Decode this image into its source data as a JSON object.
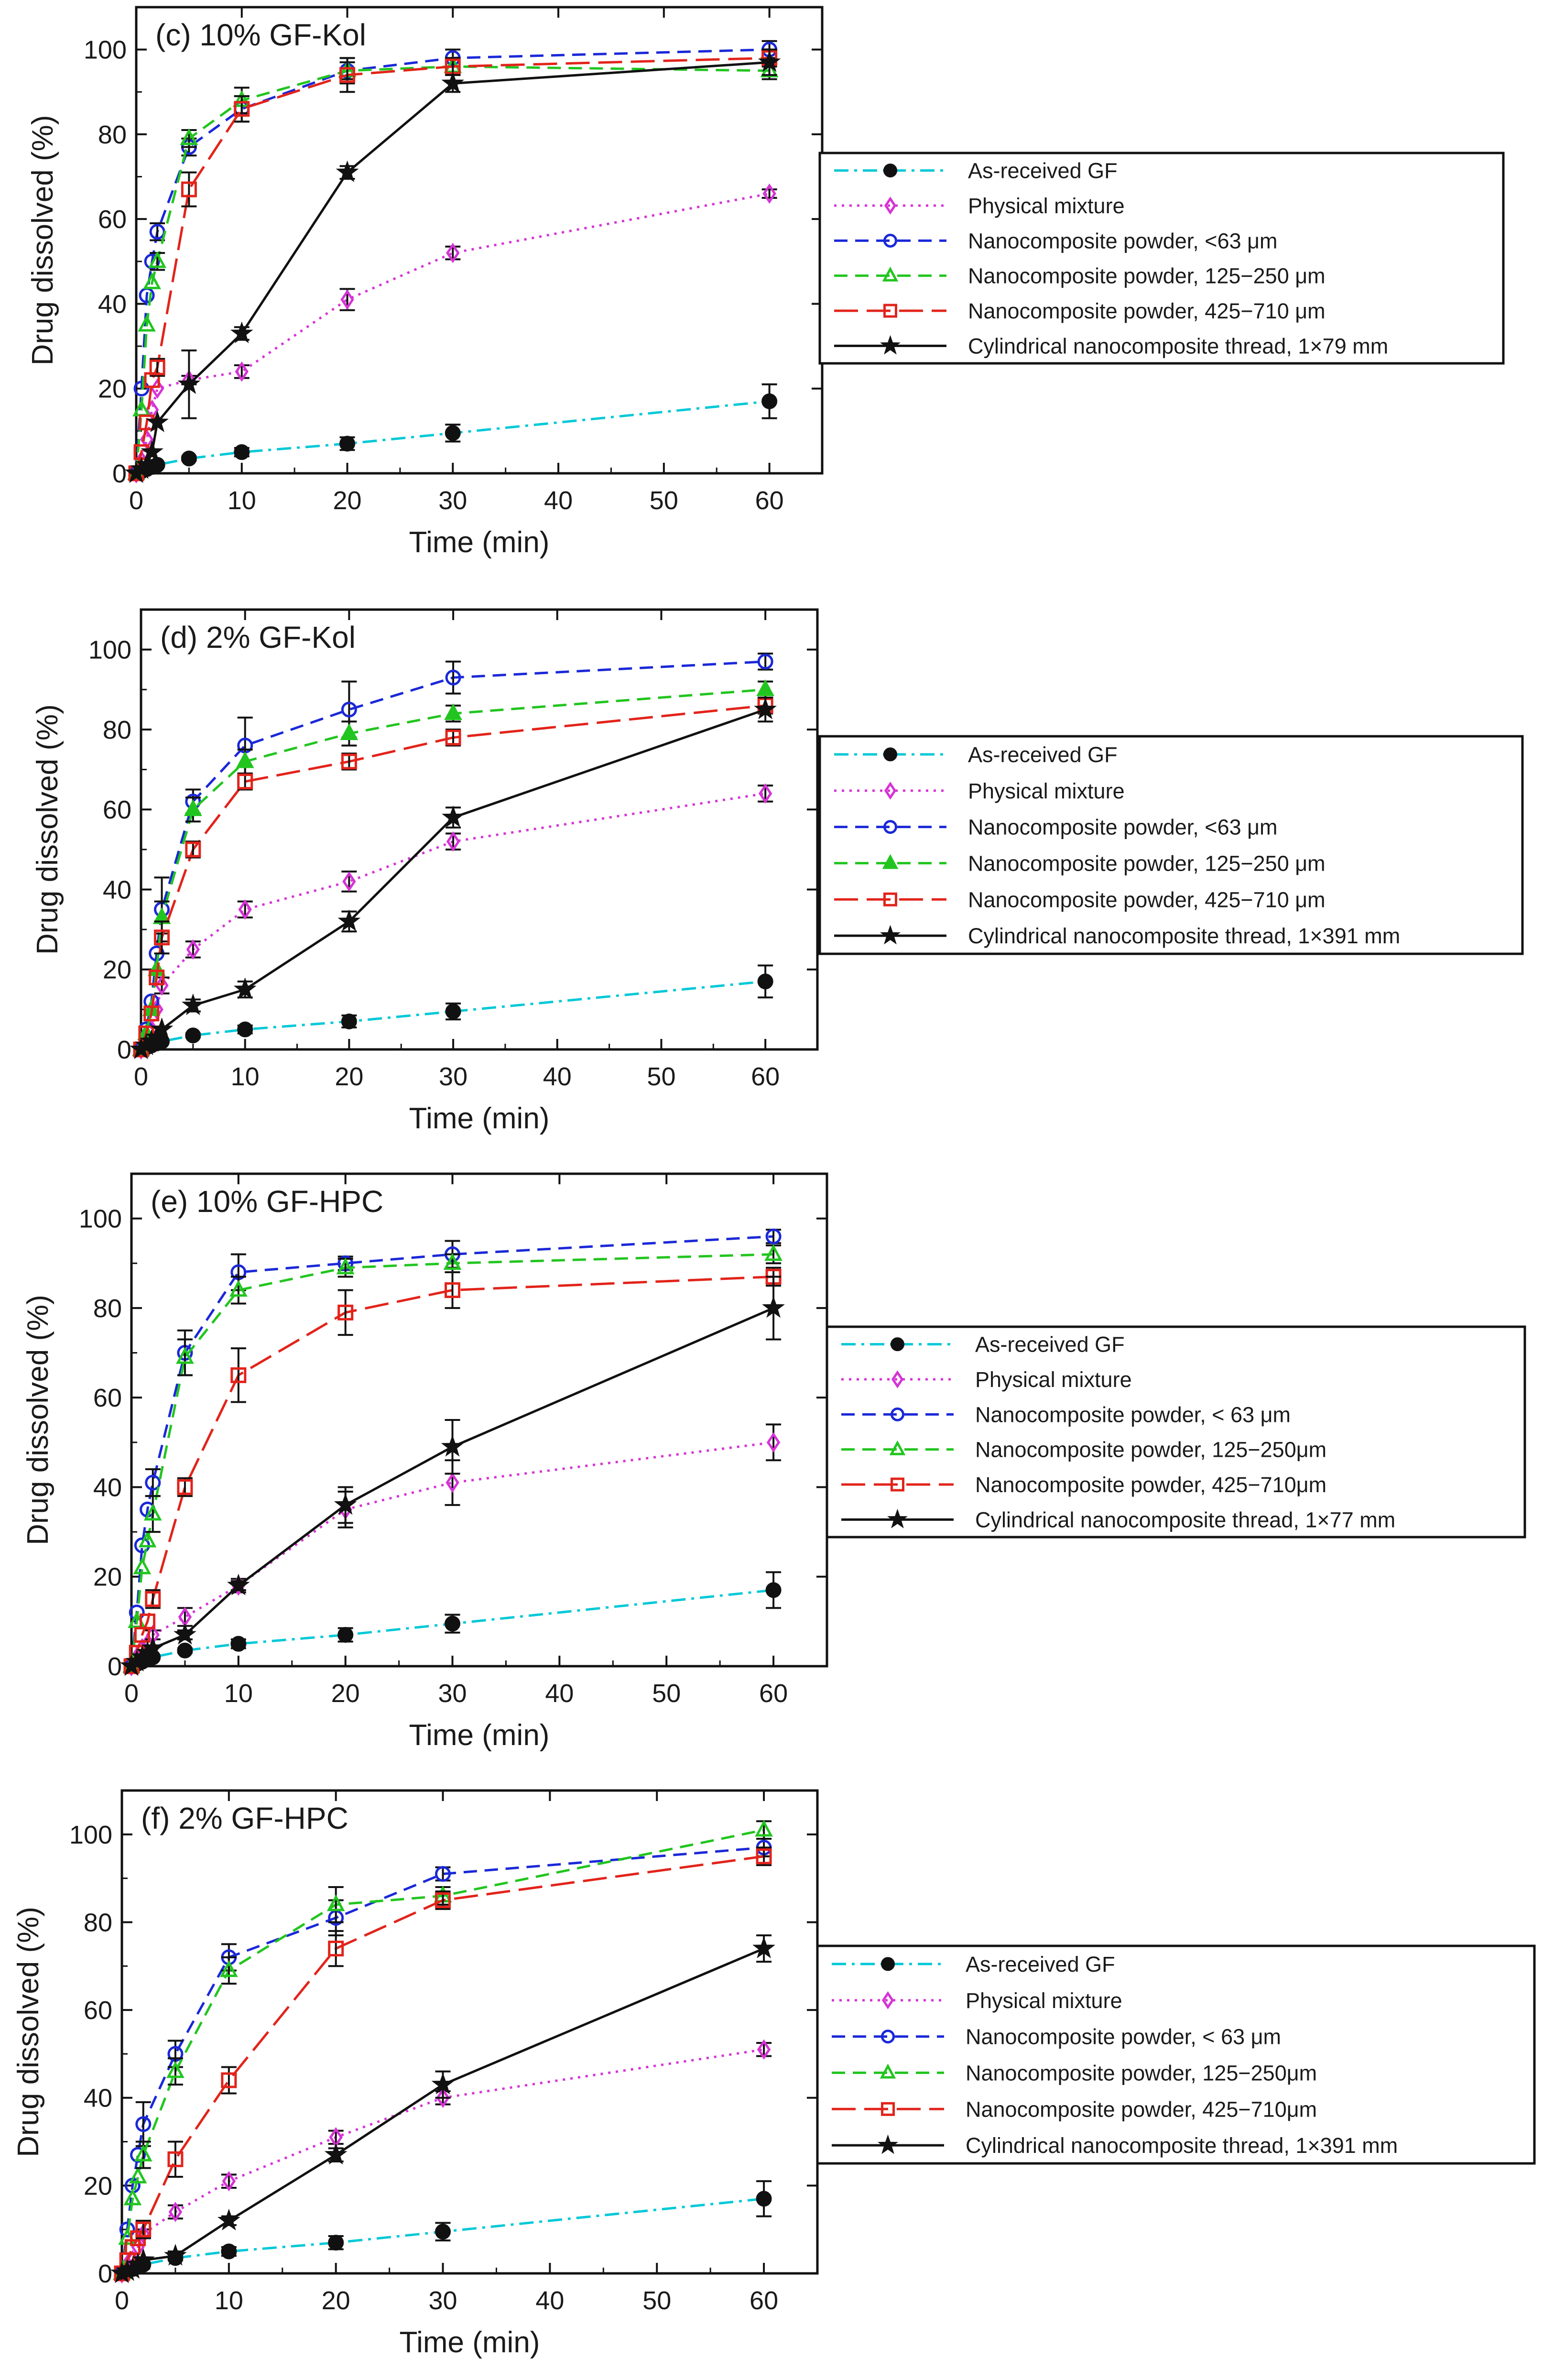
{
  "chart_data": [
    {
      "type": "line",
      "title": "(c) 10% GF-Kol",
      "xlabel": "Time (min)",
      "ylabel": "Drug dissolved (%)",
      "xlim": [
        0,
        65
      ],
      "ylim": [
        0,
        110
      ],
      "xticks": [
        0,
        10,
        20,
        30,
        40,
        50,
        60
      ],
      "yticks": [
        0,
        20,
        40,
        60,
        80,
        100
      ],
      "grid": false,
      "legend_position": "right",
      "series": [
        {
          "name": "As-received GF",
          "color": "#00c8d7",
          "dash": "dashdot",
          "marker": "circle-filled",
          "x": [
            0,
            0.5,
            1,
            1.5,
            2,
            5,
            10,
            20,
            30,
            60
          ],
          "values": [
            0,
            0.5,
            1,
            1.5,
            2,
            3.5,
            5,
            7,
            9.5,
            17
          ],
          "errors": [
            0,
            0,
            0,
            0,
            0,
            0.5,
            1,
            1.5,
            2,
            4
          ]
        },
        {
          "name": "Physical mixture",
          "color": "#d633d6",
          "dash": "dotted",
          "marker": "diamond",
          "x": [
            0,
            0.5,
            1,
            1.5,
            2,
            5,
            10,
            20,
            30,
            60
          ],
          "values": [
            0,
            3,
            8,
            15,
            20,
            22,
            24,
            41,
            52,
            66
          ],
          "errors": [
            0,
            0,
            0,
            0,
            0,
            1,
            1.5,
            2.5,
            1.5,
            1
          ]
        },
        {
          "name": "Nanocomposite powder, <63 μm",
          "color": "#1a28d8",
          "dash": "dashed",
          "marker": "circle",
          "x": [
            0,
            0.5,
            1,
            1.5,
            2,
            5,
            10,
            20,
            30,
            60
          ],
          "values": [
            0,
            20,
            42,
            50,
            57,
            77,
            86,
            95,
            98,
            100
          ],
          "errors": [
            0,
            0,
            0,
            0,
            2,
            2,
            3,
            3,
            2,
            2
          ]
        },
        {
          "name": "Nanocomposite powder, 125−250 μm",
          "color": "#22c51f",
          "dash": "dashed",
          "marker": "triangle",
          "x": [
            0,
            0.5,
            1,
            1.5,
            2,
            5,
            10,
            20,
            30,
            60
          ],
          "values": [
            0,
            15,
            35,
            45,
            50,
            79,
            88,
            95,
            96,
            95
          ],
          "errors": [
            0,
            0,
            0,
            0,
            2,
            2,
            3,
            2,
            2,
            2
          ]
        },
        {
          "name": "Nanocomposite powder, 425−710 μm",
          "color": "#e2231a",
          "dash": "longdash",
          "marker": "square",
          "x": [
            0,
            0.5,
            1,
            1.5,
            2,
            5,
            10,
            20,
            30,
            60
          ],
          "values": [
            0,
            5,
            12,
            22,
            25,
            67,
            86,
            94,
            96,
            98
          ],
          "errors": [
            0,
            0,
            0,
            0,
            2,
            4,
            3,
            4,
            2,
            2
          ]
        },
        {
          "name": "Cylindrical nanocomposite thread, 1×79 mm",
          "color": "#111111",
          "dash": "solid",
          "marker": "star",
          "x": [
            0,
            0.5,
            1,
            1.5,
            2,
            5,
            10,
            20,
            30,
            60
          ],
          "values": [
            0,
            1,
            2,
            5,
            12,
            21,
            33,
            71,
            92,
            97
          ],
          "errors": [
            0,
            0,
            0,
            0,
            0,
            8,
            1.5,
            1.5,
            2,
            3
          ]
        }
      ]
    },
    {
      "type": "line",
      "title": "(d) 2% GF-Kol",
      "xlabel": "Time (min)",
      "ylabel": "Drug dissolved (%)",
      "xlim": [
        0,
        65
      ],
      "ylim": [
        0,
        110
      ],
      "xticks": [
        0,
        10,
        20,
        30,
        40,
        50,
        60
      ],
      "yticks": [
        0,
        20,
        40,
        60,
        80,
        100
      ],
      "grid": false,
      "legend_position": "right",
      "series": [
        {
          "name": "As-received GF",
          "color": "#00c8d7",
          "dash": "dashdot",
          "marker": "circle-filled",
          "x": [
            0,
            0.5,
            1,
            1.5,
            2,
            5,
            10,
            20,
            30,
            60
          ],
          "values": [
            0,
            0.5,
            1,
            1.5,
            2,
            3.5,
            5,
            7,
            9.5,
            17
          ],
          "errors": [
            0,
            0,
            0,
            0,
            0,
            0.5,
            1,
            1.5,
            2,
            4
          ]
        },
        {
          "name": "Physical mixture",
          "color": "#d633d6",
          "dash": "dotted",
          "marker": "diamond",
          "x": [
            0,
            0.5,
            1,
            1.5,
            2,
            5,
            10,
            20,
            30,
            60
          ],
          "values": [
            0,
            2,
            5,
            10,
            16,
            25,
            35,
            42,
            52,
            64
          ],
          "errors": [
            0,
            0,
            0,
            0,
            2,
            2,
            2,
            2.5,
            2,
            2
          ]
        },
        {
          "name": "Nanocomposite powder, <63 μm",
          "color": "#1a28d8",
          "dash": "dashed",
          "marker": "circle",
          "x": [
            0,
            0.5,
            1,
            1.5,
            2,
            5,
            10,
            20,
            30,
            60
          ],
          "values": [
            0,
            5,
            12,
            24,
            35,
            62,
            76,
            85,
            93,
            97
          ],
          "errors": [
            0,
            0,
            0,
            0,
            8,
            3,
            7,
            7,
            4,
            2
          ]
        },
        {
          "name": "Nanocomposite powder, 125−250 μm",
          "color": "#22c51f",
          "dash": "dashed",
          "marker": "triangle-filled",
          "x": [
            0,
            0.5,
            1,
            1.5,
            2,
            5,
            10,
            20,
            30,
            60
          ],
          "values": [
            0,
            4,
            10,
            20,
            33,
            60,
            72,
            79,
            84,
            90
          ],
          "errors": [
            0,
            0,
            0,
            0,
            4,
            3,
            3,
            3,
            2,
            2
          ]
        },
        {
          "name": "Nanocomposite powder, 425−710 μm",
          "color": "#e2231a",
          "dash": "longdash",
          "marker": "square",
          "x": [
            0,
            0.5,
            1,
            1.5,
            2,
            5,
            10,
            20,
            30,
            60
          ],
          "values": [
            0,
            4,
            9,
            18,
            28,
            50,
            67,
            72,
            78,
            86
          ],
          "errors": [
            0,
            0,
            0,
            0,
            4,
            2,
            2,
            2,
            2,
            2
          ]
        },
        {
          "name": "Cylindrical nanocomposite thread, 1×391 mm",
          "color": "#111111",
          "dash": "solid",
          "marker": "star",
          "x": [
            0,
            0.5,
            1,
            1.5,
            2,
            5,
            10,
            20,
            30,
            60
          ],
          "values": [
            0,
            1,
            2,
            3,
            5,
            11,
            15,
            32,
            58,
            85
          ],
          "errors": [
            0,
            0,
            0,
            0,
            0,
            1.5,
            2,
            2.5,
            2.5,
            3
          ]
        }
      ]
    },
    {
      "type": "line",
      "title": "(e) 10% GF-HPC",
      "xlabel": "Time (min)",
      "ylabel": "Drug dissolved (%)",
      "xlim": [
        0,
        65
      ],
      "ylim": [
        0,
        110
      ],
      "xticks": [
        0,
        10,
        20,
        30,
        40,
        50,
        60
      ],
      "yticks": [
        0,
        20,
        40,
        60,
        80,
        100
      ],
      "grid": false,
      "legend_position": "right",
      "series": [
        {
          "name": "As-received GF",
          "color": "#00c8d7",
          "dash": "dashdot",
          "marker": "circle-filled",
          "x": [
            0,
            0.5,
            1,
            1.5,
            2,
            5,
            10,
            20,
            30,
            60
          ],
          "values": [
            0,
            0.5,
            1,
            1.5,
            2,
            3.5,
            5,
            7,
            9.5,
            17
          ],
          "errors": [
            0,
            0,
            0,
            0,
            0,
            0.5,
            1,
            1.5,
            2,
            4
          ]
        },
        {
          "name": "Physical mixture",
          "color": "#d633d6",
          "dash": "dotted",
          "marker": "diamond",
          "x": [
            0,
            0.5,
            1,
            1.5,
            2,
            5,
            10,
            20,
            30,
            60
          ],
          "values": [
            0,
            2,
            4,
            5,
            7,
            11,
            18,
            35,
            41,
            50
          ],
          "errors": [
            0,
            0,
            0,
            0,
            1,
            2,
            1.5,
            4,
            5,
            4
          ]
        },
        {
          "name": "Nanocomposite powder, < 63 μm",
          "color": "#1a28d8",
          "dash": "dashed",
          "marker": "circle",
          "x": [
            0,
            0.5,
            1,
            1.5,
            2,
            5,
            10,
            20,
            30,
            60
          ],
          "values": [
            0,
            12,
            27,
            35,
            41,
            70,
            88,
            90,
            92,
            96
          ],
          "errors": [
            0,
            0,
            0,
            0,
            3,
            5,
            4,
            1.5,
            3,
            1.5
          ]
        },
        {
          "name": "Nanocomposite powder, 125−250μm",
          "color": "#22c51f",
          "dash": "dashed",
          "marker": "triangle",
          "x": [
            0,
            0.5,
            1,
            1.5,
            2,
            5,
            10,
            20,
            30,
            60
          ],
          "values": [
            0,
            10,
            22,
            28,
            34,
            69,
            84,
            89,
            90,
            92
          ],
          "errors": [
            0,
            0,
            0,
            0,
            4,
            4,
            3,
            2,
            2,
            2
          ]
        },
        {
          "name": "Nanocomposite powder, 425−710μm",
          "color": "#e2231a",
          "dash": "longdash",
          "marker": "square",
          "x": [
            0,
            0.5,
            1,
            1.5,
            2,
            5,
            10,
            20,
            30,
            60
          ],
          "values": [
            0,
            3,
            7,
            10,
            15,
            40,
            65,
            79,
            84,
            87
          ],
          "errors": [
            0,
            0,
            0,
            0,
            2,
            2,
            6,
            5,
            4,
            2
          ]
        },
        {
          "name": "Cylindrical nanocomposite thread, 1×77 mm",
          "color": "#111111",
          "dash": "solid",
          "marker": "star",
          "x": [
            0,
            0.5,
            1,
            1.5,
            2,
            5,
            10,
            20,
            30,
            60
          ],
          "values": [
            0,
            1,
            2,
            3,
            4,
            7,
            18,
            36,
            49,
            80
          ],
          "errors": [
            0,
            0,
            0,
            0,
            0,
            1,
            1,
            4,
            6,
            7
          ]
        }
      ]
    },
    {
      "type": "line",
      "title": "(f) 2% GF-HPC",
      "xlabel": "Time (min)",
      "ylabel": "Drug dissolved (%)",
      "xlim": [
        0,
        65
      ],
      "ylim": [
        0,
        110
      ],
      "xticks": [
        0,
        10,
        20,
        30,
        40,
        50,
        60
      ],
      "yticks": [
        0,
        20,
        40,
        60,
        80,
        100
      ],
      "grid": false,
      "legend_position": "right",
      "series": [
        {
          "name": "As-received GF",
          "color": "#00c8d7",
          "dash": "dashdot",
          "marker": "circle-filled",
          "x": [
            0,
            0.5,
            1,
            1.5,
            2,
            5,
            10,
            20,
            30,
            60
          ],
          "values": [
            0,
            0.5,
            1,
            1.5,
            2,
            3.5,
            5,
            7,
            9.5,
            17
          ],
          "errors": [
            0,
            0,
            0,
            0,
            0,
            0.5,
            1,
            1.5,
            2,
            4
          ]
        },
        {
          "name": "Physical mixture",
          "color": "#d633d6",
          "dash": "dotted",
          "marker": "diamond",
          "x": [
            0,
            0.5,
            1,
            1.5,
            2,
            5,
            10,
            20,
            30,
            60
          ],
          "values": [
            0,
            2,
            3,
            6,
            9,
            14,
            21,
            31,
            40,
            51
          ],
          "errors": [
            0,
            0,
            0,
            0,
            1,
            1.5,
            1.5,
            1.5,
            1.5,
            1.5
          ]
        },
        {
          "name": "Nanocomposite powder, < 63 μm",
          "color": "#1a28d8",
          "dash": "dashed",
          "marker": "circle",
          "x": [
            0,
            0.5,
            1,
            1.5,
            2,
            5,
            10,
            20,
            30,
            60
          ],
          "values": [
            0,
            10,
            20,
            27,
            34,
            50,
            72,
            81,
            91,
            97
          ],
          "errors": [
            0,
            0,
            0,
            0,
            5,
            3,
            3,
            4,
            1.5,
            2
          ]
        },
        {
          "name": "Nanocomposite powder, 125−250μm",
          "color": "#22c51f",
          "dash": "dashed",
          "marker": "triangle",
          "x": [
            0,
            0.5,
            1,
            1.5,
            2,
            5,
            10,
            20,
            30,
            60
          ],
          "values": [
            0,
            8,
            17,
            22,
            27,
            46,
            69,
            84,
            86,
            101
          ],
          "errors": [
            0,
            0,
            0,
            0,
            3,
            3,
            3,
            4,
            2,
            2
          ]
        },
        {
          "name": "Nanocomposite powder, 425−710μm",
          "color": "#e2231a",
          "dash": "longdash",
          "marker": "square",
          "x": [
            0,
            0.5,
            1,
            1.5,
            2,
            5,
            10,
            20,
            30,
            60
          ],
          "values": [
            0,
            3,
            6,
            8,
            10,
            26,
            44,
            74,
            85,
            95
          ],
          "errors": [
            0,
            0,
            0,
            0,
            2,
            4,
            3,
            4,
            2,
            2
          ]
        },
        {
          "name": "Cylindrical nanocomposite thread, 1×391 mm",
          "color": "#111111",
          "dash": "solid",
          "marker": "star",
          "x": [
            0,
            0.5,
            1,
            1.5,
            2,
            5,
            10,
            20,
            30,
            60
          ],
          "values": [
            0,
            0.5,
            1,
            2,
            3,
            4,
            12,
            27,
            43,
            74
          ],
          "errors": [
            0,
            0,
            0,
            0,
            0,
            1,
            1,
            1.5,
            3,
            3
          ]
        }
      ]
    }
  ]
}
